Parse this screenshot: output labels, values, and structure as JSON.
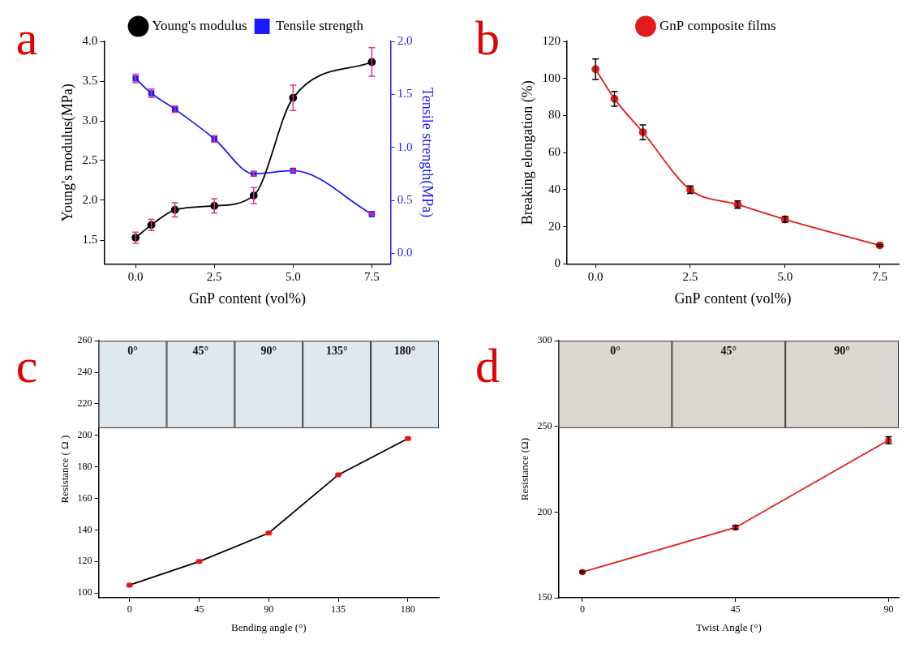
{
  "chart_data": [
    {
      "panel_label": "a",
      "type": "line",
      "x_label": "GnP content (vol%)",
      "y_label": "Young's modulus(MPa)",
      "y2_label": "Tensile strength(MPa)",
      "x": [
        0,
        0.5,
        1.25,
        2.5,
        3.75,
        5.0,
        7.5
      ],
      "xlim": [
        -1,
        8.1
      ],
      "xticks": [
        {
          "value": 0,
          "label": "0.0"
        },
        2.5,
        {
          "value": 5,
          "label": "5.0"
        },
        7.5
      ],
      "ylim": [
        1.2,
        4.0
      ],
      "yticks": [
        1.5,
        {
          "value": 2,
          "label": "2.0"
        },
        2.5,
        {
          "value": 3,
          "label": "3.0"
        },
        3.5,
        {
          "value": 4,
          "label": "4.0"
        }
      ],
      "y2lim": [
        -0.1,
        2.0
      ],
      "y2ticks": [
        {
          "value": 0,
          "label": "0.0"
        },
        0.5,
        {
          "value": 1,
          "label": "1.0"
        },
        1.5,
        {
          "value": 2,
          "label": "2.0"
        }
      ],
      "grid": false,
      "legend": "top",
      "series": [
        {
          "name": "Young's modulus",
          "color": "#000000",
          "marker": "circle",
          "line_style": "smooth",
          "values": [
            1.53,
            1.69,
            1.88,
            1.93,
            2.06,
            3.29,
            3.74
          ],
          "errors": [
            0.07,
            0.07,
            0.09,
            0.09,
            0.1,
            0.16,
            0.18
          ]
        },
        {
          "name": "Tensile strength",
          "color": "#1a1aff",
          "marker": "square",
          "line_style": "smooth",
          "axis": "y2",
          "values": [
            1.65,
            1.51,
            1.36,
            1.08,
            0.75,
            0.78,
            0.37
          ],
          "errors": [
            0.04,
            0.04,
            0.03,
            0.03,
            0.02,
            0.01,
            0.01
          ]
        }
      ]
    },
    {
      "panel_label": "b",
      "type": "line",
      "x_label": "GnP content (vol%)",
      "y_label": "Breaking elongation (%)",
      "x": [
        0,
        0.5,
        1.25,
        2.5,
        3.75,
        5.0,
        7.5
      ],
      "xlim": [
        -0.75,
        8.0
      ],
      "xticks": [
        {
          "value": 0,
          "label": "0.0"
        },
        2.5,
        {
          "value": 5,
          "label": "5.0"
        },
        7.5
      ],
      "ylim": [
        0,
        120
      ],
      "yticks": [
        0,
        20,
        40,
        60,
        80,
        100,
        120
      ],
      "grid": false,
      "legend": "top",
      "series": [
        {
          "name": "GnP composite films",
          "color": "#e41a1c",
          "marker": "circle",
          "line_style": "smooth",
          "values": [
            105,
            89,
            71,
            40,
            32,
            24,
            10
          ],
          "errors": [
            5.5,
            4,
            4,
            2,
            2,
            1.5,
            0.5
          ]
        }
      ]
    },
    {
      "panel_label": "c",
      "type": "line",
      "x_label": "Bending angle (°)",
      "y_label": "Resistance ( Ω )",
      "annotations": [
        "0°",
        "45°",
        "90°",
        "135°",
        "180°"
      ],
      "x": [
        0,
        45,
        90,
        135,
        180
      ],
      "xlim": [
        -20,
        200
      ],
      "xticks": [
        0,
        45,
        90,
        135,
        180
      ],
      "ylim": [
        97,
        260
      ],
      "yticks": [
        100,
        120,
        140,
        160,
        180,
        200,
        220,
        240,
        260
      ],
      "grid": false,
      "series": [
        {
          "name": "Resistance",
          "color": "#000000",
          "marker": "square",
          "line_style": "solid",
          "values": [
            105,
            120,
            138,
            175,
            198
          ],
          "errors": [
            0.5,
            0.5,
            0.5,
            0.5,
            0.5
          ]
        }
      ]
    },
    {
      "panel_label": "d",
      "type": "line",
      "x_label": "Twist Angle (°)",
      "y_label": "Resistance (Ω)",
      "annotations": [
        "0°",
        "45°",
        "90°"
      ],
      "x": [
        0,
        45,
        90
      ],
      "xlim": [
        -7,
        93
      ],
      "xticks": [
        0,
        45,
        90
      ],
      "ylim": [
        150,
        300
      ],
      "yticks": [
        150,
        200,
        250,
        300
      ],
      "grid": false,
      "series": [
        {
          "name": "Resistance",
          "color": "#e41a1c",
          "marker": "circle",
          "line_style": "solid",
          "values": [
            165,
            191,
            242
          ],
          "errors": [
            0.5,
            1,
            2
          ]
        }
      ]
    }
  ]
}
